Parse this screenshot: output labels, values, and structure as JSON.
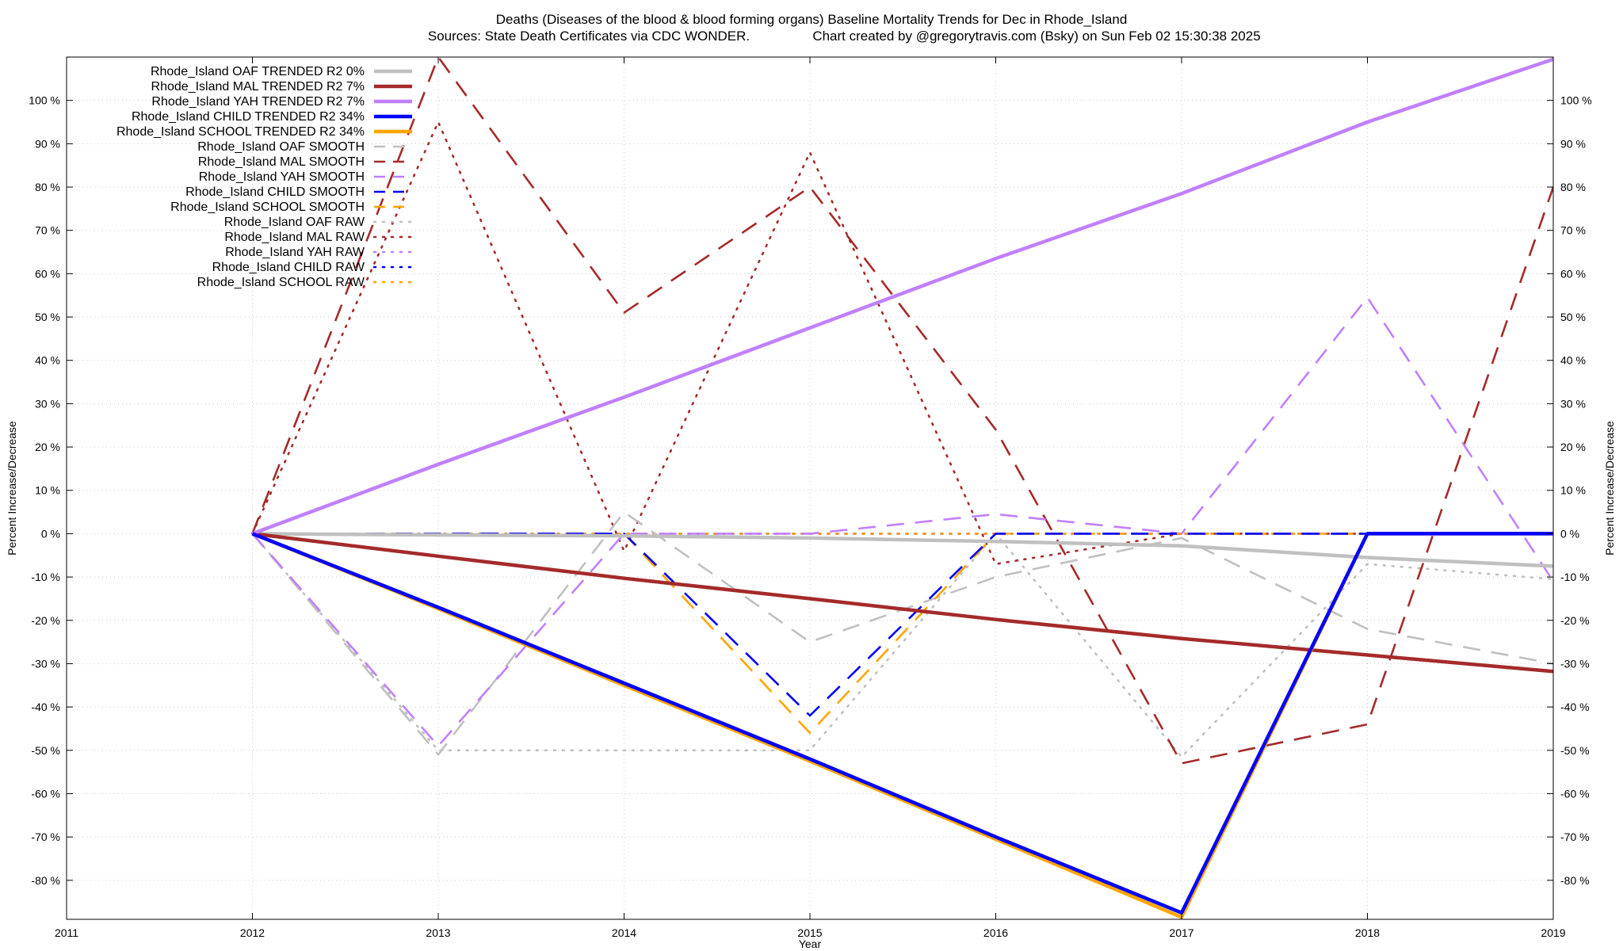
{
  "chart_data": {
    "type": "line",
    "title": "Deaths (Diseases of the blood & blood forming organs)  Baseline Mortality Trends for Dec in Rhode_Island",
    "subtitle_left": "Sources: State Death Certificates via CDC WONDER.",
    "subtitle_right": "Chart created by @gregorytravis.com (Bsky) on Sun Feb 02 15:30:38 2025",
    "xlabel": "Year",
    "ylabel": "Percent Increase/Decrease",
    "y2label": "Percent Increase/Decrease",
    "xlim": [
      2011,
      2019
    ],
    "ylim": [
      -89,
      110
    ],
    "xticks": [
      "2011",
      "2012",
      "2013",
      "2014",
      "2015",
      "2016",
      "2017",
      "2018",
      "2019"
    ],
    "yticks": [
      {
        "value": 100,
        "label": "100 %"
      },
      {
        "value": 90,
        "label": "90 %"
      },
      {
        "value": 80,
        "label": "80 %"
      },
      {
        "value": 70,
        "label": "70 %"
      },
      {
        "value": 60,
        "label": "60 %"
      },
      {
        "value": 50,
        "label": "50 %"
      },
      {
        "value": 40,
        "label": "40 %"
      },
      {
        "value": 30,
        "label": "30 %"
      },
      {
        "value": 20,
        "label": "20 %"
      },
      {
        "value": 10,
        "label": "10 %"
      },
      {
        "value": 0,
        "label": "0 %"
      },
      {
        "value": -10,
        "label": "-10 %"
      },
      {
        "value": -20,
        "label": "-20 %"
      },
      {
        "value": -30,
        "label": "-30 %"
      },
      {
        "value": -40,
        "label": "-40 %"
      },
      {
        "value": -50,
        "label": "-50 %"
      },
      {
        "value": -60,
        "label": "-60 %"
      },
      {
        "value": -70,
        "label": "-70 %"
      },
      {
        "value": -80,
        "label": "-80 %"
      }
    ],
    "grid": true,
    "legend_position": "top-left",
    "series": [
      {
        "name": "Rhode_Island OAF TRENDED R2   0%",
        "style": "trended",
        "color": "#c0c0c0",
        "x": [
          2012,
          2013,
          2014,
          2015,
          2016,
          2017,
          2018,
          2019
        ],
        "y": [
          0,
          -0.3,
          -0.5,
          -1,
          -1.8,
          -2.8,
          -5.5,
          -7.5
        ]
      },
      {
        "name": "Rhode_Island MAL TRENDED R2   7%",
        "style": "trended",
        "color": "#a52a2a",
        "x": [
          2012,
          2013,
          2014,
          2015,
          2016,
          2017,
          2018,
          2019
        ],
        "y": [
          0,
          -5.2,
          -10.3,
          -15,
          -19.8,
          -24.2,
          -28,
          -31.8
        ]
      },
      {
        "name": "Rhode_Island YAH TRENDED R2   7%",
        "style": "trended",
        "color": "#c080ff",
        "x": [
          2012,
          2013,
          2014,
          2015,
          2016,
          2017,
          2018,
          2019
        ],
        "y": [
          0,
          16,
          31.5,
          47.5,
          63.5,
          78.5,
          95,
          109.5
        ]
      },
      {
        "name": "Rhode_Island CHILD TRENDED R2  34%",
        "style": "trended",
        "color": "#0000ff",
        "x": [
          2012,
          2013,
          2014,
          2015,
          2016,
          2017,
          2018,
          2019
        ],
        "y": [
          0,
          -17,
          -34.5,
          -52,
          -70,
          -87.5,
          0,
          0
        ]
      },
      {
        "name": "Rhode_Island SCHOOL TRENDED R2  34%",
        "style": "trended",
        "color": "#ffa500",
        "x": [
          2012,
          2013,
          2014,
          2015,
          2016,
          2017,
          2018,
          2019
        ],
        "y": [
          0,
          -17.3,
          -35,
          -52.5,
          -70.5,
          -88.5,
          0,
          0
        ]
      },
      {
        "name": "Rhode_Island OAF SMOOTH",
        "style": "smooth",
        "color": "#c0c0c0",
        "x": [
          2012,
          2013,
          2014,
          2015,
          2016,
          2017,
          2018,
          2019
        ],
        "y": [
          0,
          -51,
          5,
          -25,
          -10,
          -1,
          -22,
          -30
        ]
      },
      {
        "name": "Rhode_Island MAL SMOOTH",
        "style": "smooth",
        "color": "#a52a2a",
        "x": [
          2012,
          2013,
          2014,
          2015,
          2016,
          2017,
          2018,
          2019
        ],
        "y": [
          0,
          110,
          51,
          80,
          24,
          -53,
          -44,
          80
        ]
      },
      {
        "name": "Rhode_Island YAH SMOOTH",
        "style": "smooth",
        "color": "#c080ff",
        "x": [
          2012,
          2013,
          2014,
          2015,
          2016,
          2017,
          2018,
          2019
        ],
        "y": [
          0,
          -49,
          0,
          0,
          4.5,
          0,
          54.5,
          -11
        ]
      },
      {
        "name": "Rhode_Island CHILD SMOOTH",
        "style": "smooth",
        "color": "#0000ff",
        "x": [
          2012,
          2013,
          2014,
          2015,
          2016,
          2017,
          2018,
          2019
        ],
        "y": [
          0,
          0,
          0,
          -42,
          0,
          0,
          0,
          0
        ]
      },
      {
        "name": "Rhode_Island SCHOOL SMOOTH",
        "style": "smooth",
        "color": "#ffa500",
        "x": [
          2012,
          2013,
          2014,
          2015,
          2016,
          2017,
          2018,
          2019
        ],
        "y": [
          0,
          0,
          0,
          -46,
          0,
          0,
          0,
          0
        ]
      },
      {
        "name": "Rhode_Island OAF RAW",
        "style": "raw",
        "color": "#c0c0c0",
        "x": [
          2012,
          2013,
          2014,
          2015,
          2016,
          2017,
          2018,
          2019
        ],
        "y": [
          0,
          -50,
          -50,
          -50,
          0,
          -51.5,
          -7,
          -10.5
        ]
      },
      {
        "name": "Rhode_Island MAL RAW",
        "style": "raw",
        "color": "#a52a2a",
        "x": [
          2012,
          2013,
          2014,
          2015,
          2016,
          2017,
          2018,
          2019
        ],
        "y": [
          0,
          95,
          -4,
          88,
          -7,
          0,
          0,
          0
        ]
      },
      {
        "name": "Rhode_Island YAH RAW",
        "style": "raw",
        "color": "#c080ff",
        "x": [
          2012,
          2013,
          2014,
          2015,
          2016,
          2017,
          2018,
          2019
        ],
        "y": [
          0,
          0,
          0,
          0,
          0,
          0,
          0,
          0
        ]
      },
      {
        "name": "Rhode_Island CHILD RAW",
        "style": "raw",
        "color": "#0000ff",
        "x": [
          2012,
          2013,
          2014,
          2015,
          2016,
          2017,
          2018,
          2019
        ],
        "y": [
          0,
          0,
          0,
          0,
          0,
          0,
          0,
          0
        ]
      },
      {
        "name": "Rhode_Island SCHOOL RAW",
        "style": "raw",
        "color": "#ffa500",
        "x": [
          2012,
          2013,
          2014,
          2015,
          2016,
          2017,
          2018,
          2019
        ],
        "y": [
          0,
          0,
          0,
          0,
          0,
          0,
          0,
          0
        ]
      }
    ]
  }
}
